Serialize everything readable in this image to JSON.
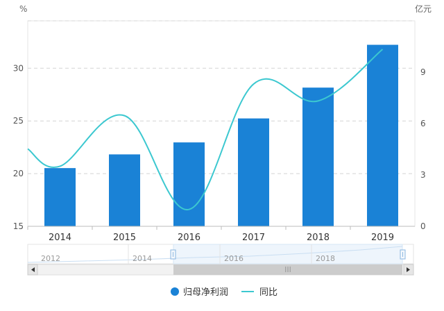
{
  "chart_data": {
    "type": "bar",
    "title": "",
    "categories": [
      "2014",
      "2015",
      "2016",
      "2017",
      "2018",
      "2019"
    ],
    "y_left": {
      "unit": "%",
      "ticks": [
        "15",
        "20",
        "25",
        "30"
      ],
      "range": [
        15,
        34.5
      ]
    },
    "y_right": {
      "unit": "亿元",
      "ticks": [
        "0",
        "3",
        "6",
        "9"
      ],
      "range": [
        0,
        12
      ]
    },
    "series": [
      {
        "name": "归母净利润",
        "kind": "bar",
        "axis": "right",
        "color": "#1a82d6",
        "values": [
          3.4,
          4.2,
          4.9,
          6.3,
          8.1,
          10.6
        ]
      },
      {
        "name": "同比",
        "kind": "line",
        "axis": "left",
        "color": "#3cc8d0",
        "values": [
          20.7,
          25.5,
          16.6,
          28.5,
          26.9,
          31.8
        ]
      }
    ],
    "grid": "horizontal-dashed",
    "legend_position": "bottom-center",
    "navigator": {
      "years": [
        "2012",
        "2014",
        "2016",
        "2018"
      ],
      "scroll_thumb_label": "III"
    }
  }
}
